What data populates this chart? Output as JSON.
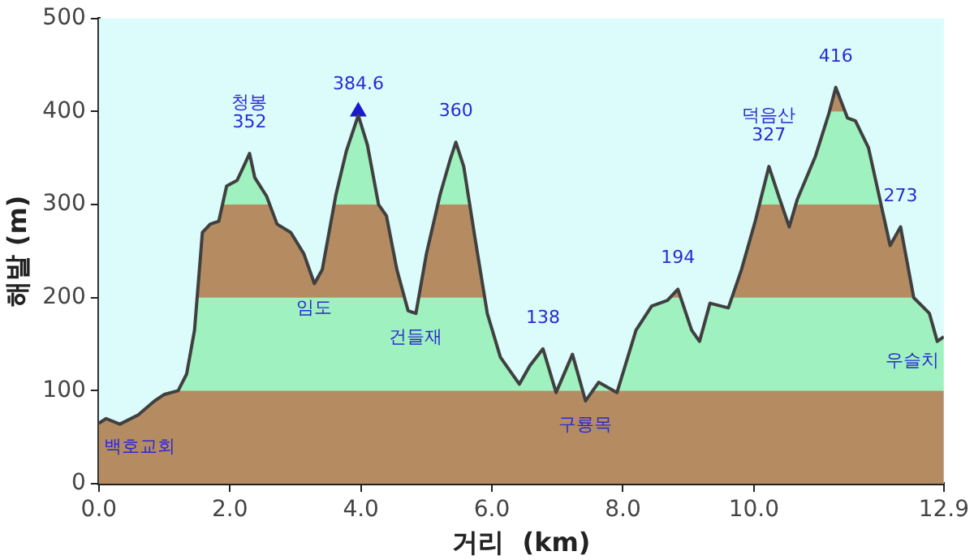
{
  "chart_data": {
    "type": "line",
    "xlabel": "거리  (km)",
    "ylabel": "해발 (m)",
    "xlim": [
      0,
      12.9
    ],
    "ylim": [
      0,
      500
    ],
    "xticks": [
      {
        "value": 0,
        "label": "0.0"
      },
      {
        "value": 2,
        "label": "2.0"
      },
      {
        "value": 4,
        "label": "4.0"
      },
      {
        "value": 6,
        "label": "6.0"
      },
      {
        "value": 8,
        "label": "8.0"
      },
      {
        "value": 10,
        "label": "10.0"
      },
      {
        "value": 12.9,
        "label": "12.9"
      }
    ],
    "yticks": [
      0,
      100,
      200,
      300,
      400,
      500
    ],
    "grid": false,
    "legend": false,
    "marker": "none",
    "line_style": "solid",
    "bands": [
      {
        "axis": "y",
        "from": 0,
        "to": 100,
        "color": "#b58c62"
      },
      {
        "axis": "y",
        "from": 100,
        "to": 200,
        "color": "#9ff2bf"
      },
      {
        "axis": "y",
        "from": 200,
        "to": 300,
        "color": "#b58c62"
      },
      {
        "axis": "y",
        "from": 300,
        "to": 400,
        "color": "#9ff2bf"
      },
      {
        "axis": "y",
        "from": 400,
        "to": 500,
        "color": "#b58c62"
      }
    ],
    "series": [
      {
        "color": "#404040",
        "x": [
          0,
          0.11,
          0.32,
          0.6,
          0.85,
          1.0,
          1.21,
          1.34,
          1.46,
          1.58,
          1.7,
          1.83,
          1.95,
          2.11,
          2.23,
          2.3,
          2.38,
          2.56,
          2.72,
          2.93,
          3.13,
          3.29,
          3.41,
          3.62,
          3.78,
          3.96,
          4.1,
          4.27,
          4.39,
          4.55,
          4.72,
          4.84,
          5.0,
          5.21,
          5.37,
          5.45,
          5.57,
          5.74,
          5.93,
          6.13,
          6.42,
          6.58,
          6.78,
          6.98,
          7.23,
          7.43,
          7.63,
          7.91,
          8.2,
          8.44,
          8.68,
          8.84,
          9.05,
          9.17,
          9.33,
          9.61,
          9.81,
          10.02,
          10.23,
          10.38,
          10.54,
          10.66,
          10.94,
          11.15,
          11.25,
          11.43,
          11.55,
          11.75,
          12.08,
          12.24,
          12.44,
          12.68,
          12.8,
          12.9
        ],
        "values": [
          65,
          70,
          64,
          74,
          89,
          96,
          100,
          118,
          165,
          270,
          279,
          282,
          320,
          326,
          344,
          355,
          329,
          309,
          279,
          270,
          247,
          215,
          230,
          311,
          358,
          396,
          364,
          300,
          288,
          230,
          186,
          183,
          247,
          311,
          350,
          367,
          341,
          265,
          183,
          136,
          107,
          127,
          145,
          98,
          139,
          89,
          109,
          98,
          165,
          191,
          197,
          209,
          165,
          153,
          194,
          189,
          230,
          282,
          341,
          309,
          276,
          305,
          352,
          399,
          426,
          393,
          390,
          361,
          256,
          276,
          200,
          183,
          153,
          158
        ]
      },
      {
        "type": "scatter",
        "color": "#1a1acc",
        "marker": "triangle",
        "x": [
          3.96
        ],
        "values": [
          400
        ]
      }
    ],
    "annotations": [
      {
        "text": "청봉\n352",
        "x": 2.3,
        "y": 352
      },
      {
        "text": "384.6",
        "x": 3.96,
        "y": 384.6
      },
      {
        "text": "360",
        "x": 5.45,
        "y": 360
      },
      {
        "text": "임도",
        "x": 3.29,
        "y": 215
      },
      {
        "text": "건들재",
        "x": 4.84,
        "y": 183
      },
      {
        "text": "138",
        "x": 6.78,
        "y": 138
      },
      {
        "text": "구룡목",
        "x": 7.43,
        "y": 89
      },
      {
        "text": "194",
        "x": 8.84,
        "y": 194
      },
      {
        "text": "덕음산\n327",
        "x": 10.23,
        "y": 327
      },
      {
        "text": "416",
        "x": 11.25,
        "y": 416
      },
      {
        "text": "273",
        "x": 12.24,
        "y": 273
      },
      {
        "text": "우슬치",
        "x": 12.9,
        "y": 158
      },
      {
        "text": "백호교회",
        "x": 0,
        "y": 65
      }
    ]
  }
}
